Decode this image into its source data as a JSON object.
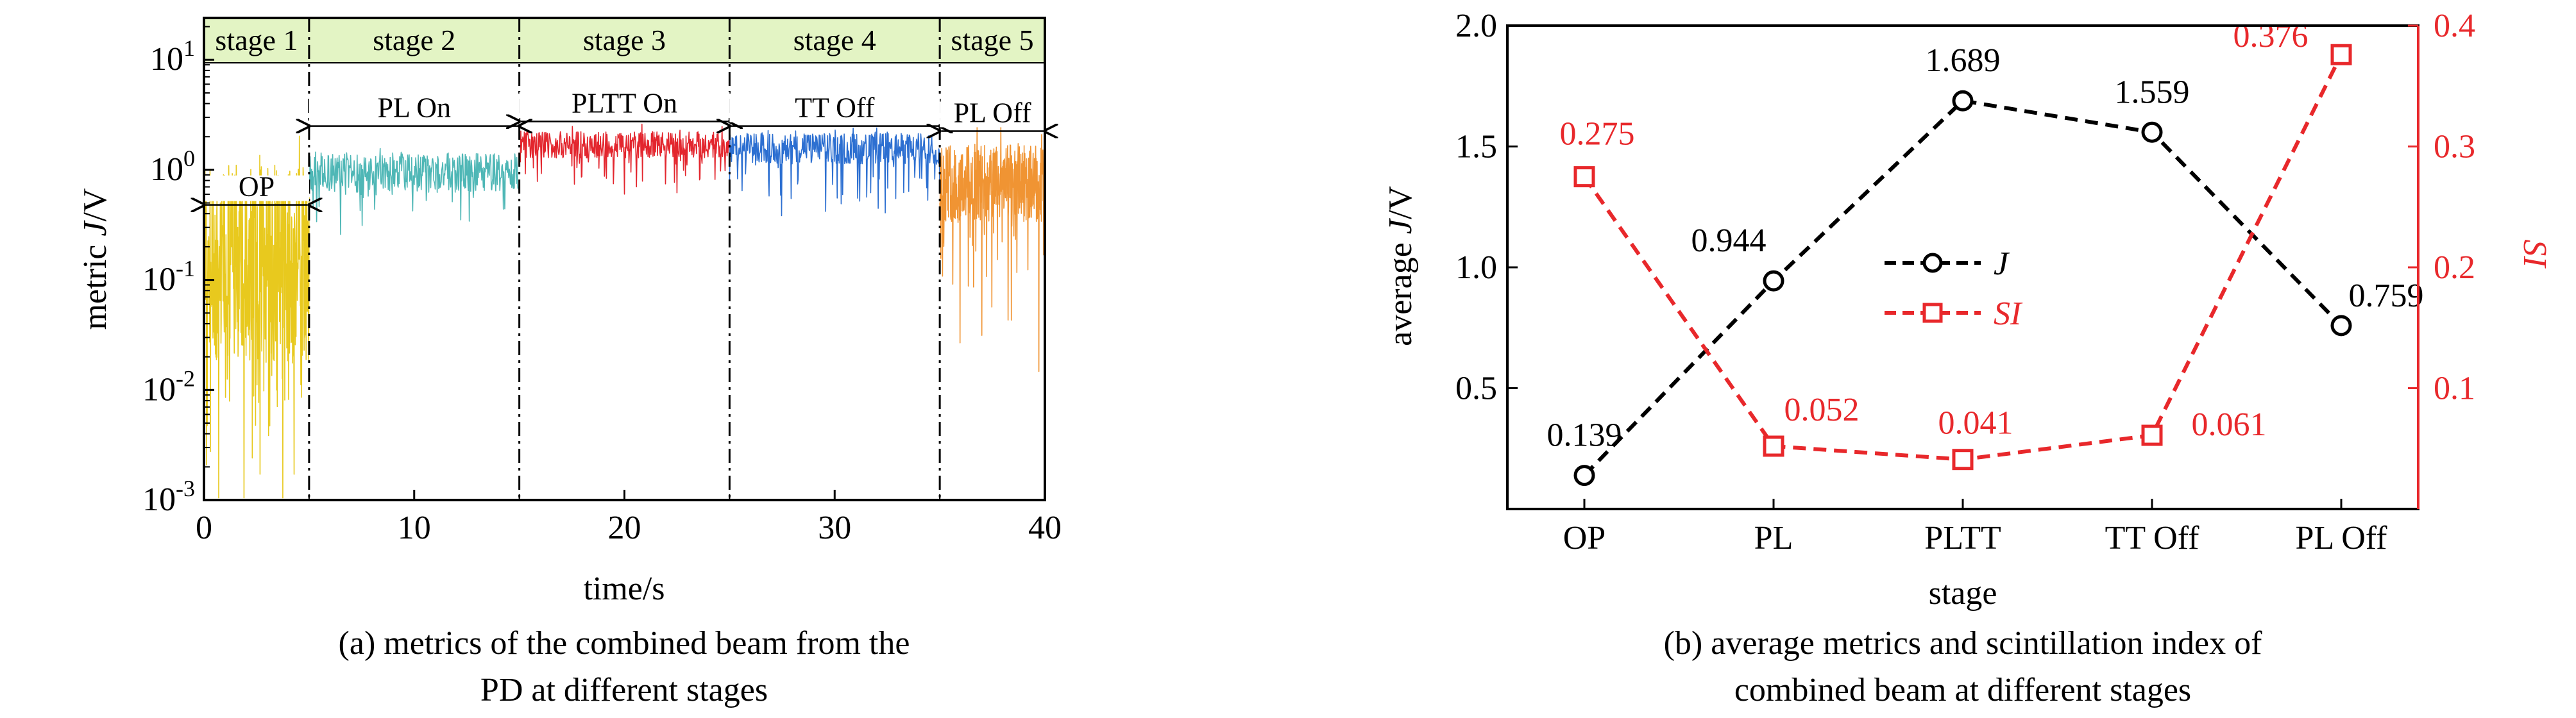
{
  "colors": {
    "stage_band": "#e3f4c4",
    "signal_op": "#e8c91e",
    "signal_pl": "#4fb7b6",
    "signal_pltt": "#e3262e",
    "signal_tt": "#2c6fd1",
    "signal_ploff": "#f09433",
    "J": "#000000",
    "SI": "#e8282b"
  },
  "chart_data": [
    {
      "type": "line",
      "xlabel": "time/s",
      "ylabel": "metric J/V",
      "ylabel_parts": [
        "metric ",
        "J",
        "/V"
      ],
      "caption_lines": [
        "(a) metrics of the combined beam from the",
        "PD at different stages"
      ],
      "x_ticks": [
        0,
        10,
        20,
        30,
        40
      ],
      "xlim": [
        0,
        40
      ],
      "ylim_log10": [
        -3,
        1.38
      ],
      "y_scale": "log",
      "y_ticks": [
        {
          "base": "10",
          "exp": "1",
          "value": 10
        },
        {
          "base": "10",
          "exp": "0",
          "value": 1
        },
        {
          "base": "10",
          "exp": "-1",
          "value": 0.1
        },
        {
          "base": "10",
          "exp": "-2",
          "value": 0.01
        },
        {
          "base": "10",
          "exp": "-3",
          "value": 0.001
        }
      ],
      "stages": [
        {
          "label": "stage 1",
          "start": 0,
          "end": 5
        },
        {
          "label": "stage 2",
          "start": 5,
          "end": 15
        },
        {
          "label": "stage 3",
          "start": 15,
          "end": 25
        },
        {
          "label": "stage 4",
          "start": 25,
          "end": 35
        },
        {
          "label": "stage 5",
          "start": 35,
          "end": 40
        }
      ],
      "stage_dividers": [
        5,
        15,
        25,
        35
      ],
      "annotations": [
        {
          "label": "OP",
          "start": 0,
          "end": 5,
          "y": 0.48
        },
        {
          "label": "PL On",
          "start": 5,
          "end": 15,
          "y": 2.5
        },
        {
          "label": "PLTT On",
          "start": 15,
          "end": 25,
          "y": 2.75
        },
        {
          "label": "TT Off",
          "start": 25,
          "end": 35,
          "y": 2.5
        },
        {
          "label": "PL Off",
          "start": 35,
          "end": 40,
          "y": 2.25
        }
      ],
      "series": [
        {
          "segment": "OP",
          "t": [
            0,
            5
          ],
          "median": 0.139,
          "color_key": "signal_op"
        },
        {
          "segment": "PL On",
          "t": [
            5,
            15
          ],
          "median": 0.944,
          "color_key": "signal_pl"
        },
        {
          "segment": "PLTT On",
          "t": [
            15,
            25
          ],
          "median": 1.689,
          "color_key": "signal_pltt"
        },
        {
          "segment": "TT Off",
          "t": [
            25,
            35
          ],
          "median": 1.559,
          "color_key": "signal_tt"
        },
        {
          "segment": "PL Off",
          "t": [
            35,
            40
          ],
          "median": 0.759,
          "color_key": "signal_ploff"
        }
      ]
    },
    {
      "type": "line",
      "xlabel": "stage",
      "ylabel": "average J/V",
      "ylabel_parts": [
        "average ",
        "J",
        "/V"
      ],
      "y2label": "SI",
      "caption_lines": [
        "(b) average metrics and scintillation index of",
        "combined beam at different stages"
      ],
      "categories": [
        "OP",
        "PL",
        "PLTT",
        "TT Off",
        "PL Off"
      ],
      "ylim": [
        0,
        2.0
      ],
      "y_ticks": [
        "0.5",
        "1.0",
        "1.5",
        "2.0"
      ],
      "y2lim": [
        0,
        0.4
      ],
      "y2_ticks": [
        "0.1",
        "0.2",
        "0.3",
        "0.4"
      ],
      "legend": "center",
      "series": [
        {
          "name": "J",
          "axis": "left",
          "marker": "circle",
          "color_key": "J",
          "values": [
            0.139,
            0.944,
            1.689,
            1.559,
            0.759
          ],
          "labels": [
            "0.139",
            "0.944",
            "1.689",
            "1.559",
            "0.759"
          ]
        },
        {
          "name": "SI",
          "axis": "right",
          "marker": "square",
          "color_key": "SI",
          "values": [
            0.275,
            0.052,
            0.041,
            0.061,
            0.376
          ],
          "labels": [
            "0.275",
            "0.052",
            "0.041",
            "0.061",
            "0.376"
          ]
        }
      ]
    }
  ]
}
